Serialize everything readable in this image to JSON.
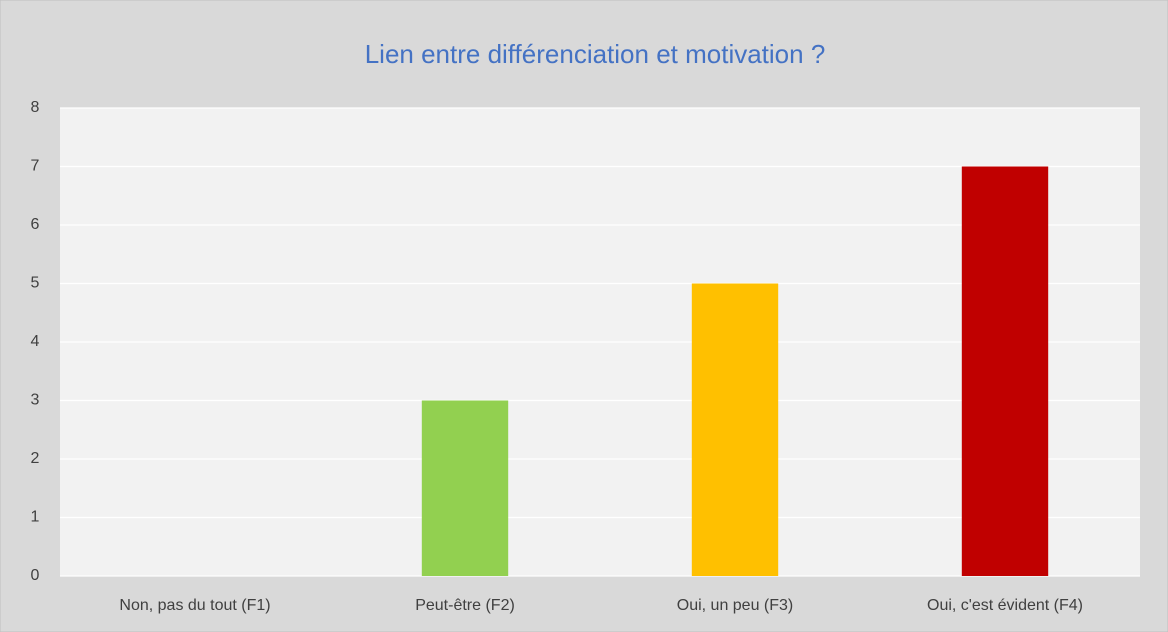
{
  "chart_data": {
    "type": "bar",
    "title": "Lien entre différenciation et motivation ?",
    "categories": [
      "Non, pas du tout (F1)",
      "Peut-être (F2)",
      "Oui, un peu (F3)",
      "Oui, c'est évident (F4)"
    ],
    "values": [
      0,
      3,
      5,
      7
    ],
    "colors": [
      null,
      "#92d050",
      "#ffc000",
      "#c00000"
    ],
    "ylim": [
      0,
      8
    ],
    "yticks": [
      0,
      1,
      2,
      3,
      4,
      5,
      6,
      7,
      8
    ],
    "grid": true
  }
}
